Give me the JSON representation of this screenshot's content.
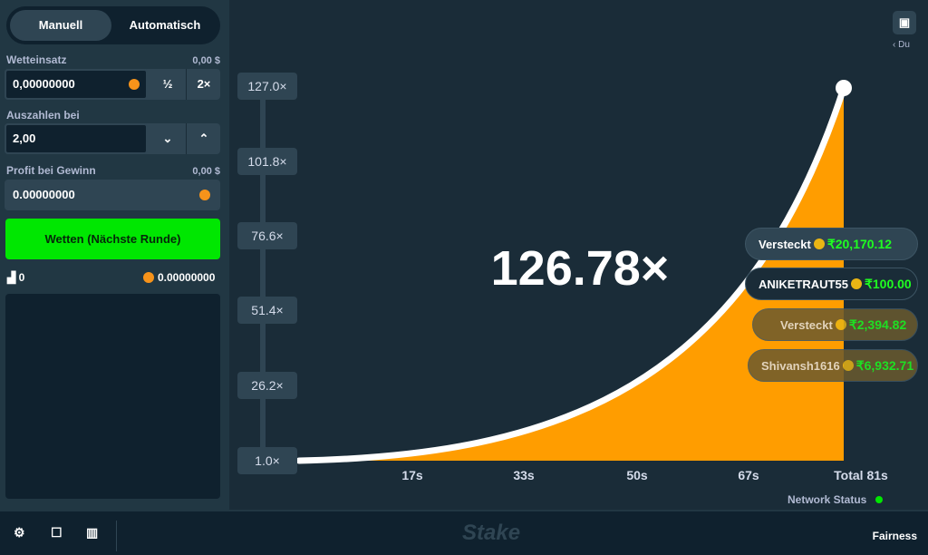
{
  "sidebar": {
    "tabs": [
      "Manuell",
      "Automatisch"
    ],
    "bet": {
      "label": "Wetteinsatz",
      "usd": "0,00 $",
      "value": "0,00000000",
      "half": "½",
      "double": "2×"
    },
    "cashout": {
      "label": "Auszahlen bei",
      "value": "2,00"
    },
    "profit": {
      "label": "Profit bei Gewinn",
      "usd": "0,00 $",
      "value": "0.00000000"
    },
    "button": "Wetten (Nächste Runde)",
    "stats": {
      "count": "0",
      "balance": "0.00000000"
    }
  },
  "game": {
    "multiplier": "126.78×",
    "y_labels": [
      "127.0×",
      "101.8×",
      "76.6×",
      "51.4×",
      "26.2×",
      "1.0×"
    ],
    "x_labels": [
      "17s",
      "33s",
      "50s",
      "67s",
      "Total 81s"
    ],
    "user": "Du",
    "bets": [
      {
        "name": "Versteckt",
        "amount": "₹20,170.12"
      },
      {
        "name": "ANIKETRAUT55",
        "amount": "₹100.00"
      },
      {
        "name": "Versteckt",
        "amount": "₹2,394.82"
      },
      {
        "name": "Shivansh1616",
        "amount": "₹6,932.71"
      }
    ],
    "network": "Network Status"
  },
  "footer": {
    "logo": "Stake",
    "fairness": "Fairness"
  }
}
